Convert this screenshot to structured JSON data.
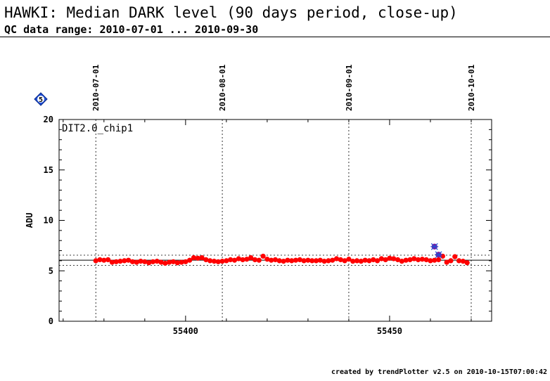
{
  "title": "HAWKI: Median DARK level (90 days period, close-up)",
  "subtitle": "QC data range: 2010-07-01 ... 2010-09-30",
  "footer": "created by trendPlotter v2.5 on 2010-10-15T07:00:42",
  "badge": {
    "label": "5",
    "color": "#1f4fd6"
  },
  "colors": {
    "points": "#ff0000",
    "outliers": "#7a1fa2",
    "outlier_edge": "#1f4fd6"
  },
  "chart_data": {
    "type": "scatter",
    "panel_label": "DIT2.0_chip1",
    "xlabel": "",
    "ylabel": "ADU",
    "xlim": [
      55369,
      55475
    ],
    "ylim": [
      0,
      20
    ],
    "x_ticks": [
      55400,
      55450
    ],
    "y_ticks": [
      0,
      5,
      10,
      15,
      20
    ],
    "date_markers": [
      {
        "x": 55378,
        "label": "2010-07-01"
      },
      {
        "x": 55409,
        "label": "2010-08-01"
      },
      {
        "x": 55440,
        "label": "2010-09-01"
      },
      {
        "x": 55470,
        "label": "2010-10-01"
      }
    ],
    "reference_lines": {
      "median": 6.05,
      "upper": 6.55,
      "lower": 5.55
    },
    "grid": false,
    "series": [
      {
        "marker": "circle",
        "x": [
          55378,
          55379,
          55380,
          55381,
          55382,
          55383,
          55384,
          55385,
          55386,
          55387,
          55388,
          55389,
          55390,
          55391,
          55392,
          55393,
          55394,
          55395,
          55396,
          55397,
          55398,
          55399,
          55400,
          55401,
          55402,
          55403,
          55404,
          55405,
          55406,
          55407,
          55408,
          55409,
          55410,
          55411,
          55412,
          55413,
          55414,
          55415,
          55416,
          55417,
          55418,
          55419,
          55420,
          55421,
          55422,
          55423,
          55424,
          55425,
          55426,
          55427,
          55428,
          55429,
          55430,
          55431,
          55432,
          55433,
          55434,
          55435,
          55436,
          55437,
          55438,
          55439,
          55440,
          55441,
          55442,
          55443,
          55444,
          55445,
          55446,
          55447,
          55448,
          55449,
          55450,
          55451,
          55452,
          55453,
          55454,
          55455,
          55456,
          55457,
          55458,
          55459,
          55460,
          55461,
          55462,
          55463,
          55464,
          55465,
          55466,
          55467,
          55468,
          55469
        ],
        "y": [
          6.0,
          6.1,
          6.05,
          6.1,
          5.85,
          5.9,
          5.95,
          6.0,
          6.05,
          5.9,
          5.85,
          5.95,
          5.9,
          5.8,
          5.9,
          5.95,
          5.85,
          5.75,
          5.85,
          5.9,
          5.8,
          5.85,
          5.9,
          6.05,
          6.3,
          6.25,
          6.3,
          6.1,
          6.0,
          5.95,
          5.9,
          5.95,
          6.0,
          6.1,
          6.05,
          6.2,
          6.1,
          6.15,
          6.3,
          6.1,
          6.05,
          6.45,
          6.15,
          6.05,
          6.1,
          6.0,
          5.95,
          6.05,
          6.0,
          6.05,
          6.1,
          6.0,
          6.05,
          6.0,
          6.0,
          6.05,
          5.95,
          6.0,
          6.05,
          6.2,
          6.1,
          6.0,
          6.15,
          5.95,
          6.0,
          5.95,
          6.05,
          6.0,
          6.1,
          6.0,
          6.2,
          6.1,
          6.25,
          6.2,
          6.1,
          5.95,
          6.05,
          6.1,
          6.2,
          6.1,
          6.15,
          6.1,
          6.0,
          6.05,
          6.1,
          6.45,
          5.85,
          6.0,
          6.4,
          6.0,
          5.95,
          5.8
        ]
      },
      {
        "marker": "star",
        "x": [
          55461,
          55462
        ],
        "y": [
          7.4,
          6.6
        ]
      }
    ]
  }
}
